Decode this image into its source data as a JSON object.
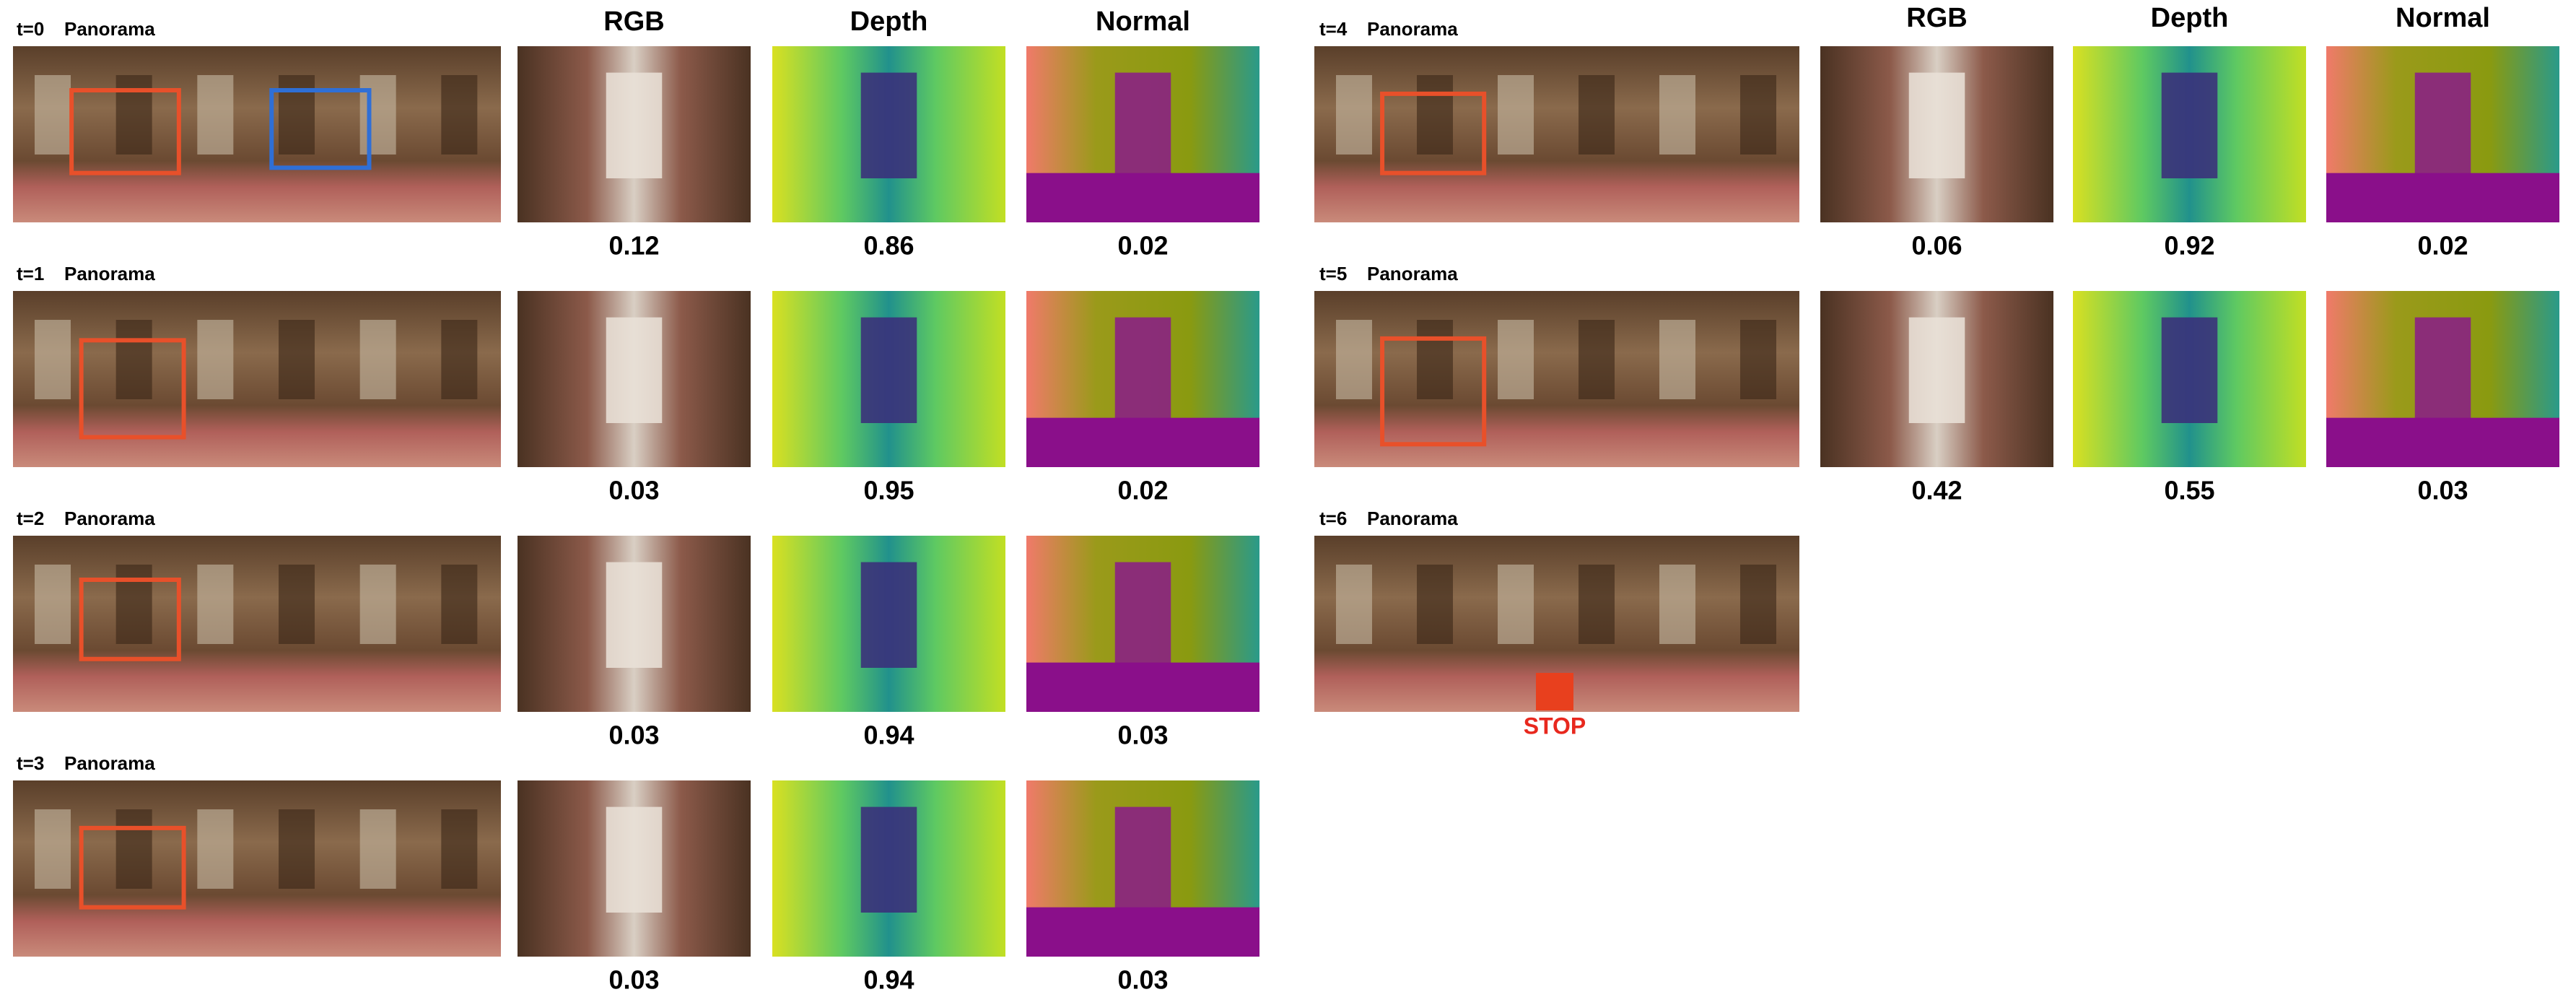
{
  "panels": [
    {
      "headers": [
        "RGB",
        "Depth",
        "Normal"
      ],
      "steps": [
        {
          "label": "t=0",
          "panorama": "Panorama",
          "scores": [
            0.12,
            0.86,
            0.02
          ]
        },
        {
          "label": "t=1",
          "panorama": "Panorama",
          "scores": [
            0.03,
            0.95,
            0.02
          ]
        },
        {
          "label": "t=2",
          "panorama": "Panorama",
          "scores": [
            0.03,
            0.94,
            0.03
          ]
        },
        {
          "label": "t=3",
          "panorama": "Panorama",
          "scores": [
            0.03,
            0.94,
            0.03
          ]
        }
      ]
    },
    {
      "headers": [
        "RGB",
        "Depth",
        "Normal"
      ],
      "steps": [
        {
          "label": "t=4",
          "panorama": "Panorama",
          "scores": [
            0.06,
            0.92,
            0.02
          ]
        },
        {
          "label": "t=5",
          "panorama": "Panorama",
          "scores": [
            0.42,
            0.55,
            0.03
          ]
        },
        {
          "label": "t=6",
          "panorama": "Panorama",
          "stop": "STOP"
        }
      ]
    }
  ]
}
